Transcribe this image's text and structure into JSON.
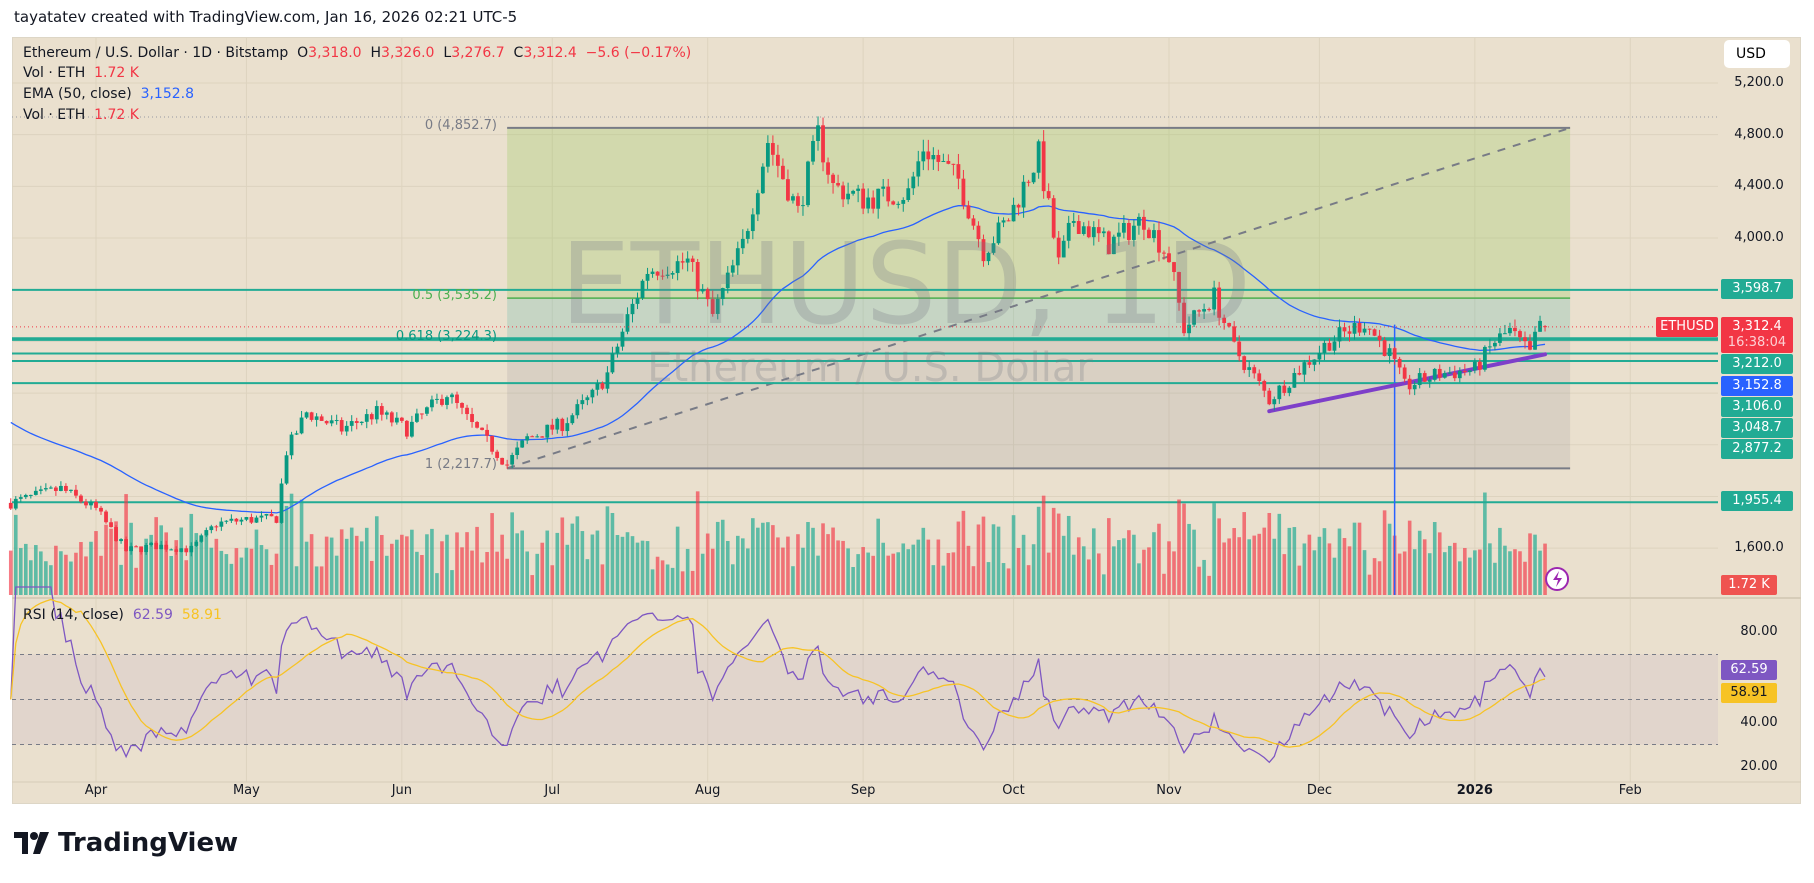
{
  "attribution": "tayatatev created with TradingView.com, Jan 16, 2026 02:21 UTC-5",
  "legend": {
    "symbol": "Ethereum / U.S. Dollar · 1D · Bitstamp",
    "o_label": "O",
    "o": "3,318.0",
    "h_label": "H",
    "h": "3,326.0",
    "l_label": "L",
    "l": "3,276.7",
    "c_label": "C",
    "c": "3,312.4",
    "change": "−5.6 (−0.17%)",
    "vol_label": "Vol · ETH",
    "vol": "1.72 K",
    "ema_label": "EMA (50, close)",
    "ema": "3,152.8",
    "vol2_label": "Vol · ETH",
    "vol2": "1.72 K",
    "rsi_label": "RSI (14, close)",
    "rsi": "62.59",
    "rsi_ma": "58.91"
  },
  "watermark": {
    "ticker": "ETHUSD, 1D",
    "name": "Ethereum / U.S. Dollar"
  },
  "currency_button": "USD",
  "price_axis": [
    "5,200.0",
    "4,800.0",
    "4,400.0",
    "4,000.0",
    "1,600.0"
  ],
  "price_axis_values": [
    5200,
    4800,
    4400,
    4000,
    1600
  ],
  "price_tags": {
    "level1": "3,598.7",
    "symbol": "ETHUSD",
    "last": "3,312.4",
    "countdown": "16:38:04",
    "level2": "3,212.0",
    "ema": "3,152.8",
    "level3": "3,106.0",
    "level4": "3,048.7",
    "level5": "2,877.2",
    "level6": "1,955.4",
    "volume": "1.72 K"
  },
  "rsi_axis": [
    "80.00",
    "40.00",
    "20.00"
  ],
  "rsi_tags": {
    "rsi": "62.59",
    "ma": "58.91"
  },
  "time_axis": [
    {
      "label": "Apr",
      "date": "2025-04-01"
    },
    {
      "label": "May",
      "date": "2025-05-01"
    },
    {
      "label": "Jun",
      "date": "2025-06-01"
    },
    {
      "label": "Jul",
      "date": "2025-07-01"
    },
    {
      "label": "Aug",
      "date": "2025-08-01"
    },
    {
      "label": "Sep",
      "date": "2025-09-01"
    },
    {
      "label": "Oct",
      "date": "2025-10-01"
    },
    {
      "label": "Nov",
      "date": "2025-11-01"
    },
    {
      "label": "Dec",
      "date": "2025-12-01"
    },
    {
      "label": "2026",
      "date": "2026-01-01"
    },
    {
      "label": "Feb",
      "date": "2026-02-01"
    }
  ],
  "fib": {
    "f0": "0 (4,852.7)",
    "f05": "0.5 (3,535.2)",
    "f0618": "0.618 (3,224.3)",
    "f1": "1 (2,217.7)",
    "top": 4852.7,
    "half": 3535.2,
    "golden": 3224.3,
    "bottom": 2217.7,
    "start": "2025-06-22",
    "end": "2026-01-20"
  },
  "levels": [
    3598.7,
    3212.0,
    3106.0,
    3048.7,
    2877.2,
    1955.4
  ],
  "trendline": {
    "from": [
      "2025-11-21",
      2660
    ],
    "to": [
      "2026-01-15",
      3100
    ]
  },
  "vertical_marker": {
    "date": "2025-12-16",
    "price": 3330
  },
  "colors": {
    "up": "#089981",
    "down": "#f23645",
    "ema": "#2962ff",
    "rsi": "#7e57c2",
    "rsi_ma": "#f7c325",
    "level": "#22ab94",
    "trend": "#7e3fc9",
    "bg": "#eae0ce"
  },
  "logo": "TradingView",
  "chart_data": {
    "type": "candlestick",
    "symbol": "ETHUSD",
    "interval": "1D",
    "ylim": [
      1400,
      5300
    ],
    "last_ohlc": {
      "open": 3318.0,
      "high": 3326.0,
      "low": 3276.7,
      "close": 3312.4
    },
    "approx_closes": [
      [
        "2025-03-15",
        1950
      ],
      [
        "2025-03-25",
        2060
      ],
      [
        "2025-04-01",
        1900
      ],
      [
        "2025-04-07",
        1580
      ],
      [
        "2025-04-13",
        1620
      ],
      [
        "2025-04-20",
        1590
      ],
      [
        "2025-04-25",
        1790
      ],
      [
        "2025-05-01",
        1820
      ],
      [
        "2025-05-07",
        1830
      ],
      [
        "2025-05-09",
        2350
      ],
      [
        "2025-05-13",
        2650
      ],
      [
        "2025-05-20",
        2520
      ],
      [
        "2025-05-27",
        2650
      ],
      [
        "2025-06-02",
        2520
      ],
      [
        "2025-06-10",
        2800
      ],
      [
        "2025-06-15",
        2550
      ],
      [
        "2025-06-22",
        2250
      ],
      [
        "2025-06-26",
        2450
      ],
      [
        "2025-07-03",
        2560
      ],
      [
        "2025-07-09",
        2780
      ],
      [
        "2025-07-12",
        2950
      ],
      [
        "2025-07-16",
        3380
      ],
      [
        "2025-07-20",
        3750
      ],
      [
        "2025-07-28",
        3820
      ],
      [
        "2025-08-02",
        3400
      ],
      [
        "2025-08-08",
        3950
      ],
      [
        "2025-08-13",
        4750
      ],
      [
        "2025-08-19",
        4200
      ],
      [
        "2025-08-23",
        4800
      ],
      [
        "2025-08-26",
        4400
      ],
      [
        "2025-09-01",
        4300
      ],
      [
        "2025-09-10",
        4350
      ],
      [
        "2025-09-13",
        4700
      ],
      [
        "2025-09-20",
        4450
      ],
      [
        "2025-09-25",
        3900
      ],
      [
        "2025-09-30",
        4150
      ],
      [
        "2025-10-06",
        4650
      ],
      [
        "2025-10-10",
        3800
      ],
      [
        "2025-10-13",
        4150
      ],
      [
        "2025-10-20",
        3950
      ],
      [
        "2025-10-27",
        4150
      ],
      [
        "2025-11-01",
        3850
      ],
      [
        "2025-11-04",
        3300
      ],
      [
        "2025-11-10",
        3550
      ],
      [
        "2025-11-14",
        3150
      ],
      [
        "2025-11-21",
        2750
      ],
      [
        "2025-11-28",
        3020
      ],
      [
        "2025-12-03",
        3200
      ],
      [
        "2025-12-10",
        3350
      ],
      [
        "2025-12-15",
        3100
      ],
      [
        "2025-12-18",
        2850
      ],
      [
        "2025-12-25",
        2950
      ],
      [
        "2026-01-01",
        2980
      ],
      [
        "2026-01-05",
        3200
      ],
      [
        "2026-01-08",
        3280
      ],
      [
        "2026-01-12",
        3100
      ],
      [
        "2026-01-14",
        3350
      ],
      [
        "2026-01-15",
        3312.4
      ]
    ],
    "indicators": {
      "ema50": 3152.8,
      "rsi14": 62.59,
      "rsi_ma": 58.91,
      "volume": "1.72K"
    }
  }
}
